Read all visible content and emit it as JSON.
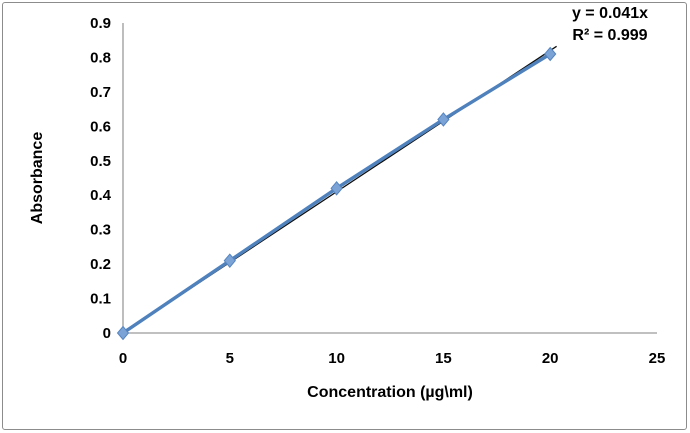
{
  "chart_data": {
    "type": "line",
    "x": [
      0,
      5,
      10,
      15,
      20
    ],
    "series": [
      {
        "name": "Absorbance",
        "values": [
          0,
          0.21,
          0.42,
          0.62,
          0.81
        ]
      }
    ],
    "trendline": {
      "type": "linear",
      "slope": 0.041,
      "intercept": 0,
      "equation": "y = 0.041x",
      "r_squared": 0.999,
      "r_squared_label": "R² = 0.999"
    },
    "title": "",
    "xlabel": "Concentration (µg\\ml)",
    "ylabel": "Absorbance",
    "xlim": [
      0,
      25
    ],
    "ylim": [
      0,
      0.9
    ],
    "xticks": [
      "0",
      "5",
      "10",
      "15",
      "20",
      "25"
    ],
    "yticks": [
      "0",
      "0.1",
      "0.2",
      "0.3",
      "0.4",
      "0.5",
      "0.6",
      "0.7",
      "0.8",
      "0.9"
    ],
    "grid": false,
    "legend": "none",
    "colors": {
      "series": "#4f81bd",
      "marker_fill": "#7ba3d6",
      "marker_edge": "#5585c0",
      "trendline": "#0d0d0d",
      "axis": "#9a9a9a",
      "text": "#000000",
      "frame_border": "#8c8c8c",
      "background": "#ffffff"
    }
  }
}
